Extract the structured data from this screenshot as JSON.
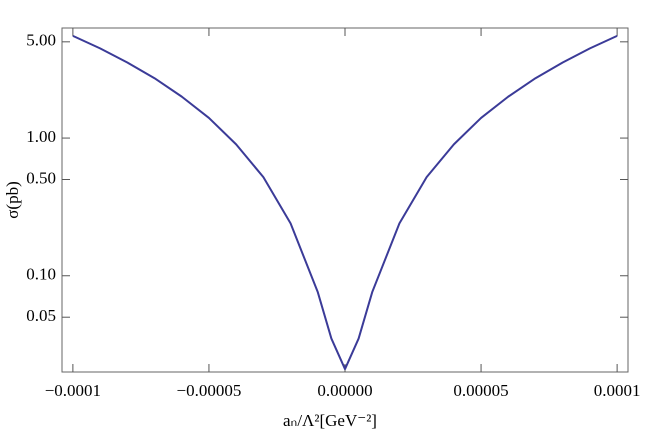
{
  "chart_data": {
    "type": "line",
    "log_y": true,
    "x_label": "aₙ/Λ²[GeV⁻²]",
    "y_label": "σ(pb)",
    "x": [
      -0.0001,
      -9e-05,
      -8e-05,
      -7e-05,
      -6e-05,
      -5e-05,
      -4e-05,
      -3e-05,
      -2e-05,
      -1e-05,
      -5e-06,
      0,
      5e-06,
      1e-05,
      2e-05,
      3e-05,
      4e-05,
      5e-05,
      6e-05,
      7e-05,
      8e-05,
      9e-05,
      0.0001
    ],
    "series": [
      {
        "name": "σ",
        "color": "#3b3b98",
        "values": [
          5.52,
          4.48,
          3.54,
          2.72,
          2.0,
          1.4,
          0.9,
          0.52,
          0.24,
          0.076,
          0.035,
          0.021,
          0.035,
          0.076,
          0.24,
          0.52,
          0.9,
          1.4,
          2.0,
          2.72,
          3.54,
          4.48,
          5.52
        ]
      }
    ],
    "xlim": [
      -0.000104,
      0.000104
    ],
    "xticks": [
      {
        "value": -0.0001,
        "label": "−0.0001"
      },
      {
        "value": -5e-05,
        "label": "−0.00005"
      },
      {
        "value": 0,
        "label": "0.00000"
      },
      {
        "value": 5e-05,
        "label": "0.00005"
      },
      {
        "value": 0.0001,
        "label": "0.0001"
      }
    ],
    "ylim": [
      0.02,
      6.3
    ],
    "yticks": [
      {
        "value": 0.05,
        "label": "0.05"
      },
      {
        "value": 0.1,
        "label": "0.10"
      },
      {
        "value": 0.5,
        "label": "0.50"
      },
      {
        "value": 1,
        "label": "1.00"
      },
      {
        "value": 5,
        "label": "5.00"
      }
    ]
  }
}
